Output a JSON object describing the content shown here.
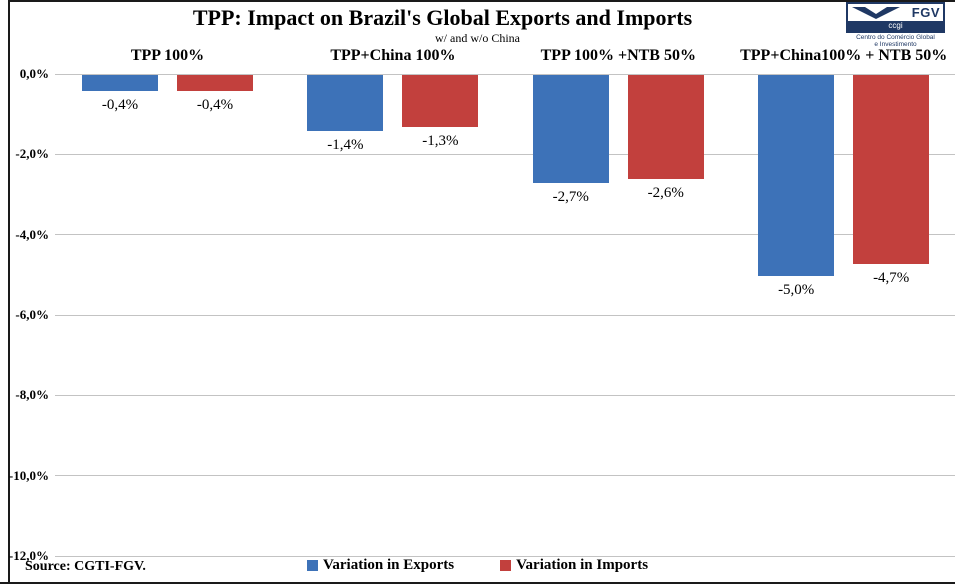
{
  "source_note": "Source: CGTI-FGV.",
  "logo": {
    "brand": "FGV",
    "unit": "ccgi",
    "caption_line1": "Centro do Comércio Global",
    "caption_line2": "e Investimento",
    "navy": "#1f3864"
  },
  "chart_data": {
    "type": "bar",
    "title": "TPP: Impact on Brazil's Global Exports and Imports",
    "subtitle": "w/ and w/o China",
    "categories": [
      "TPP 100%",
      "TPP+China 100%",
      "TPP 100% +NTB 50%",
      "TPP+China100% + NTB 50%"
    ],
    "series": [
      {
        "name": "Variation in Exports",
        "color": "#3d72b8",
        "values": [
          -0.4,
          -1.4,
          -2.7,
          -5.0
        ],
        "labels": [
          "-0,4%",
          "-1,4%",
          "-2,7%",
          "-5,0%"
        ]
      },
      {
        "name": "Variation in Imports",
        "color": "#c2403d",
        "values": [
          -0.4,
          -1.3,
          -2.6,
          -4.7
        ],
        "labels": [
          "-0,4%",
          "-1,3%",
          "-2,6%",
          "-4,7%"
        ]
      }
    ],
    "y_axis": {
      "min": -12,
      "max": 0,
      "tick_step": 2,
      "ticks": [
        {
          "label": "0,0%",
          "value": 0
        },
        {
          "label": "-2,0%",
          "value": -2
        },
        {
          "label": "-4,0%",
          "value": -4
        },
        {
          "label": "-6,0%",
          "value": -6
        },
        {
          "label": "-8,0%",
          "value": -8
        },
        {
          "label": "-10,0%",
          "value": -10
        },
        {
          "label": "-12,0%",
          "value": -12
        }
      ]
    },
    "grid": true,
    "legend_position": "bottom",
    "value_label_format": "comma-decimal percent, below bar"
  }
}
